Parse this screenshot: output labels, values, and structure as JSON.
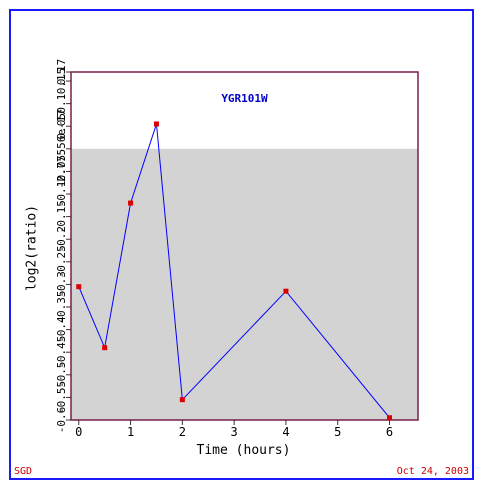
{
  "footer": {
    "left": "SGD",
    "right": "Oct 24, 2003"
  },
  "chart_data": {
    "type": "line",
    "title": "YGR101W",
    "xlabel": "Time (hours)",
    "ylabel": "log2(ratio)",
    "xlim": [
      -0.15,
      6.55
    ],
    "ylim": [
      -0.6,
      0.17
    ],
    "x_ticks": [
      0,
      1,
      2,
      3,
      4,
      5,
      6
    ],
    "x_tick_labels": [
      "0",
      "1",
      "2",
      "3",
      "4",
      "5",
      "6"
    ],
    "y_ticks": [
      -0.6,
      -0.55,
      -0.5,
      -0.45,
      -0.4,
      -0.35,
      -0.3,
      -0.25,
      -0.2,
      -0.15,
      -0.1,
      -0.05,
      0,
      0.05,
      0.1,
      0.15,
      0.17
    ],
    "y_tick_labels": [
      "-0.6",
      "-0.55",
      "-0.5",
      "-0.45",
      "-0.4",
      "-0.35",
      "-0.3",
      "-0.25",
      "-0.2",
      "-0.15",
      "-0.1",
      "-0.05",
      "-2.77556e-17",
      "0.05",
      "0.1",
      "0.15",
      "0.17"
    ],
    "shaded_band": [
      -0.6,
      0
    ],
    "colors": {
      "line": "#0000ff",
      "marker": "#dd0000",
      "band": "#d3d3d3",
      "axes": "#7a1f4a",
      "title": "#0000cc"
    },
    "x": [
      0,
      0.5,
      1,
      1.5,
      2,
      4,
      6
    ],
    "y": [
      -0.305,
      -0.44,
      -0.12,
      0.055,
      -0.555,
      -0.315,
      -0.595
    ]
  }
}
